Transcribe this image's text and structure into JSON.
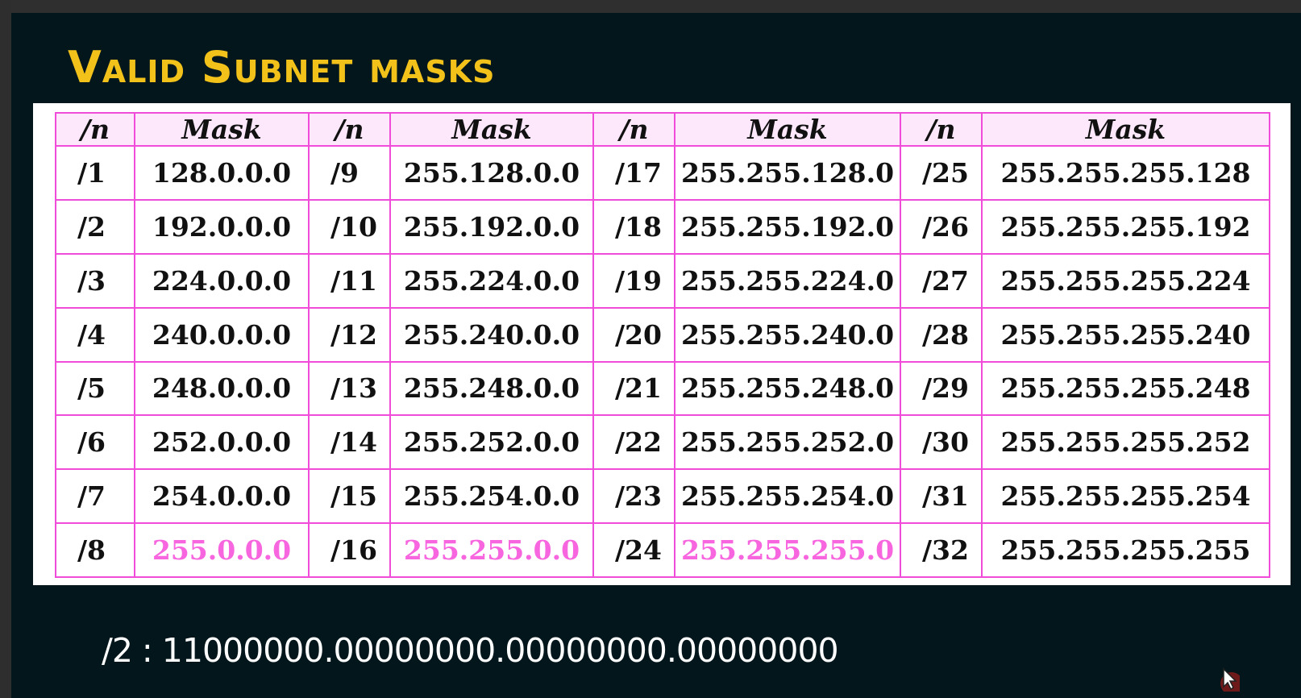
{
  "slide": {
    "title": "Valid Subnet masks",
    "binary_line": "/2 : 11000000.00000000.00000000.00000000"
  },
  "table": {
    "headers": [
      "/n",
      "Mask",
      "/n",
      "Mask",
      "/n",
      "Mask",
      "/n",
      "Mask"
    ],
    "rows": [
      [
        "/1",
        "128.0.0.0",
        "/9",
        "255.128.0.0",
        "/17",
        "255.255.128.0",
        "/25",
        "255.255.255.128"
      ],
      [
        "/2",
        "192.0.0.0",
        "/10",
        "255.192.0.0",
        "/18",
        "255.255.192.0",
        "/26",
        "255.255.255.192"
      ],
      [
        "/3",
        "224.0.0.0",
        "/11",
        "255.224.0.0",
        "/19",
        "255.255.224.0",
        "/27",
        "255.255.255.224"
      ],
      [
        "/4",
        "240.0.0.0",
        "/12",
        "255.240.0.0",
        "/20",
        "255.255.240.0",
        "/28",
        "255.255.255.240"
      ],
      [
        "/5",
        "248.0.0.0",
        "/13",
        "255.248.0.0",
        "/21",
        "255.255.248.0",
        "/29",
        "255.255.255.248"
      ],
      [
        "/6",
        "252.0.0.0",
        "/14",
        "255.252.0.0",
        "/22",
        "255.255.252.0",
        "/30",
        "255.255.255.252"
      ],
      [
        "/7",
        "254.0.0.0",
        "/15",
        "255.254.0.0",
        "/23",
        "255.255.254.0",
        "/31",
        "255.255.255.254"
      ],
      [
        "/8",
        "255.0.0.0",
        "/16",
        "255.255.0.0",
        "/24",
        "255.255.255.0",
        "/32",
        "255.255.255.255"
      ]
    ],
    "highlighted_cells": [
      [
        7,
        1
      ],
      [
        7,
        3
      ],
      [
        7,
        5
      ]
    ]
  },
  "colors": {
    "title": "#f2c21b",
    "grid_border": "#f04bd9",
    "header_bg": "#fde8fb",
    "highlight_text": "#f765df",
    "slide_bg": "#03161b"
  },
  "icons": {
    "cursor": "pointer-cursor-icon"
  }
}
